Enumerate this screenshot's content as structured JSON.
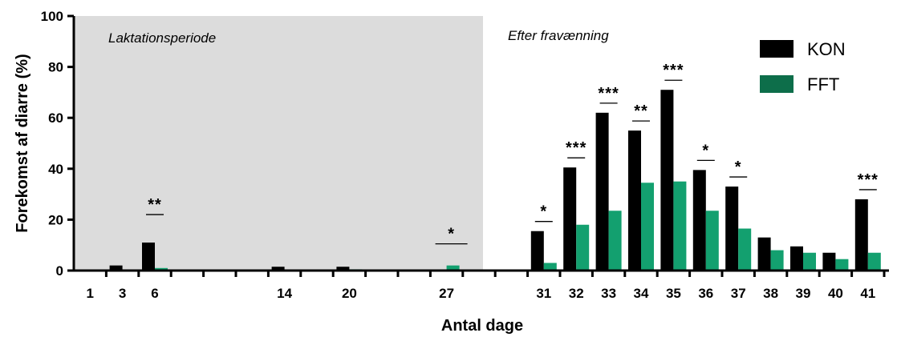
{
  "chart_data": {
    "type": "bar",
    "title": "",
    "xlabel": "Antal dage",
    "ylabel": "Forekomst af diarre (%)",
    "ylim": [
      0,
      100
    ],
    "yticks": [
      0,
      20,
      40,
      60,
      80,
      100
    ],
    "grid": false,
    "legend_position": "top-right",
    "regions": [
      {
        "label": "Laktationsperiode",
        "shaded": true,
        "color": "#dcdcdc"
      },
      {
        "label": "Efter fravænning",
        "shaded": false
      }
    ],
    "categories": [
      "1",
      "3",
      "6",
      "14",
      "20",
      "27",
      "31",
      "32",
      "33",
      "34",
      "35",
      "36",
      "37",
      "38",
      "39",
      "40",
      "41"
    ],
    "series": [
      {
        "name": "KON",
        "color": "#000000",
        "values": [
          0,
          2,
          11,
          1.5,
          1.5,
          0,
          15.5,
          40.5,
          62,
          55,
          71,
          39.5,
          33,
          13,
          9.5,
          7,
          28
        ]
      },
      {
        "name": "FFT",
        "color": "#13a06f",
        "values": [
          0,
          0,
          1,
          0,
          0.5,
          2,
          3,
          18,
          23.5,
          34.5,
          35,
          23.5,
          16.5,
          8,
          7,
          4.5,
          7
        ]
      }
    ],
    "significance": [
      {
        "category": "6",
        "label": "**"
      },
      {
        "category": "27",
        "label": "*"
      },
      {
        "category": "31",
        "label": "*"
      },
      {
        "category": "32",
        "label": "***"
      },
      {
        "category": "33",
        "label": "***"
      },
      {
        "category": "34",
        "label": "**"
      },
      {
        "category": "35",
        "label": "***"
      },
      {
        "category": "36",
        "label": "*"
      },
      {
        "category": "37",
        "label": "*"
      },
      {
        "category": "41",
        "label": "***"
      }
    ],
    "legend_swatch_colors": {
      "KON": "#000000",
      "FFT": "#0d6e4a"
    }
  }
}
